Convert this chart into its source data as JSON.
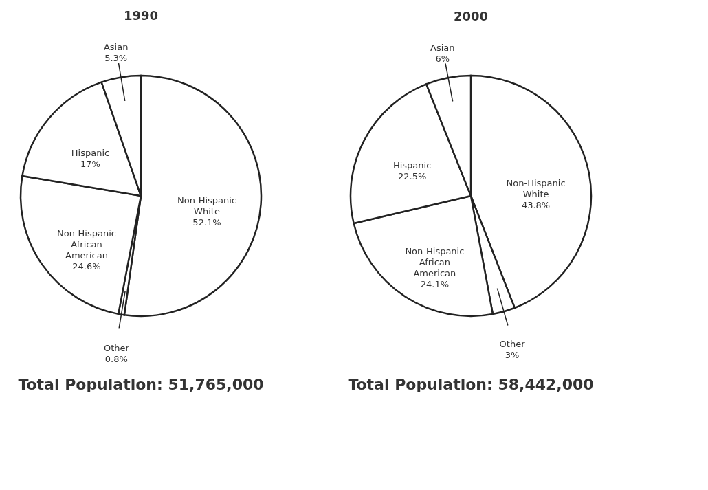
{
  "chart_data": [
    {
      "type": "pie",
      "title": "1990",
      "categories": [
        "Non-Hispanic White",
        "Other",
        "Non-Hispanic African American",
        "Hispanic",
        "Asian"
      ],
      "values": [
        52.1,
        0.8,
        24.6,
        17,
        5.3
      ],
      "value_labels": [
        "52.1%",
        "0.8%",
        "24.6%",
        "17%",
        "5.3%"
      ],
      "colors": [
        "#ffffff",
        "#ffffff",
        "#ffffff",
        "#ffffff",
        "#ffffff"
      ],
      "legend": false,
      "annotations": [
        "Total Population: 51,765,000"
      ]
    },
    {
      "type": "pie",
      "title": "2000",
      "categories": [
        "Non-Hispanic White",
        "Other",
        "Non-Hispanic African American",
        "Hispanic",
        "Asian"
      ],
      "values": [
        43.8,
        3,
        24.1,
        22.5,
        6
      ],
      "value_labels": [
        "43.8%",
        "3%",
        "24.1%",
        "22.5%",
        "6%"
      ],
      "colors": [
        "#ffffff",
        "#ffffff",
        "#ffffff",
        "#ffffff",
        "#ffffff"
      ],
      "legend": false,
      "annotations": [
        "Total Population: 58,442,000"
      ]
    }
  ]
}
